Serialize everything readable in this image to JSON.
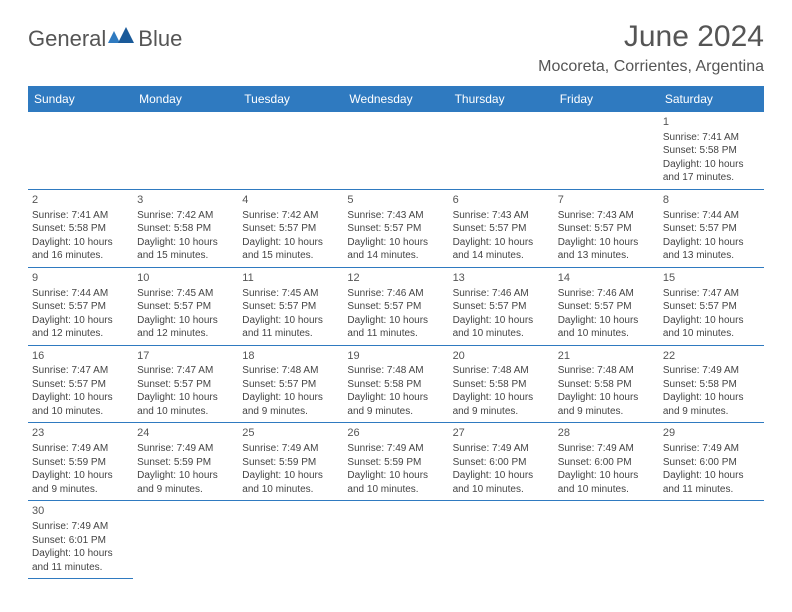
{
  "logo": {
    "text_gray": "General",
    "text_blue": "Blue"
  },
  "title": "June 2024",
  "location": "Mocoreta, Corrientes, Argentina",
  "colors": {
    "header_bg": "#2f7ac0",
    "header_fg": "#ffffff",
    "row_border": "#2f7ac0",
    "cell_top_border": "#cccccc",
    "text": "#444444",
    "title_text": "#555555"
  },
  "day_headers": [
    "Sunday",
    "Monday",
    "Tuesday",
    "Wednesday",
    "Thursday",
    "Friday",
    "Saturday"
  ],
  "weeks": [
    [
      null,
      null,
      null,
      null,
      null,
      null,
      {
        "n": "1",
        "sunrise": "7:41 AM",
        "sunset": "5:58 PM",
        "daylight": "10 hours and 17 minutes."
      }
    ],
    [
      {
        "n": "2",
        "sunrise": "7:41 AM",
        "sunset": "5:58 PM",
        "daylight": "10 hours and 16 minutes."
      },
      {
        "n": "3",
        "sunrise": "7:42 AM",
        "sunset": "5:58 PM",
        "daylight": "10 hours and 15 minutes."
      },
      {
        "n": "4",
        "sunrise": "7:42 AM",
        "sunset": "5:57 PM",
        "daylight": "10 hours and 15 minutes."
      },
      {
        "n": "5",
        "sunrise": "7:43 AM",
        "sunset": "5:57 PM",
        "daylight": "10 hours and 14 minutes."
      },
      {
        "n": "6",
        "sunrise": "7:43 AM",
        "sunset": "5:57 PM",
        "daylight": "10 hours and 14 minutes."
      },
      {
        "n": "7",
        "sunrise": "7:43 AM",
        "sunset": "5:57 PM",
        "daylight": "10 hours and 13 minutes."
      },
      {
        "n": "8",
        "sunrise": "7:44 AM",
        "sunset": "5:57 PM",
        "daylight": "10 hours and 13 minutes."
      }
    ],
    [
      {
        "n": "9",
        "sunrise": "7:44 AM",
        "sunset": "5:57 PM",
        "daylight": "10 hours and 12 minutes."
      },
      {
        "n": "10",
        "sunrise": "7:45 AM",
        "sunset": "5:57 PM",
        "daylight": "10 hours and 12 minutes."
      },
      {
        "n": "11",
        "sunrise": "7:45 AM",
        "sunset": "5:57 PM",
        "daylight": "10 hours and 11 minutes."
      },
      {
        "n": "12",
        "sunrise": "7:46 AM",
        "sunset": "5:57 PM",
        "daylight": "10 hours and 11 minutes."
      },
      {
        "n": "13",
        "sunrise": "7:46 AM",
        "sunset": "5:57 PM",
        "daylight": "10 hours and 10 minutes."
      },
      {
        "n": "14",
        "sunrise": "7:46 AM",
        "sunset": "5:57 PM",
        "daylight": "10 hours and 10 minutes."
      },
      {
        "n": "15",
        "sunrise": "7:47 AM",
        "sunset": "5:57 PM",
        "daylight": "10 hours and 10 minutes."
      }
    ],
    [
      {
        "n": "16",
        "sunrise": "7:47 AM",
        "sunset": "5:57 PM",
        "daylight": "10 hours and 10 minutes."
      },
      {
        "n": "17",
        "sunrise": "7:47 AM",
        "sunset": "5:57 PM",
        "daylight": "10 hours and 10 minutes."
      },
      {
        "n": "18",
        "sunrise": "7:48 AM",
        "sunset": "5:57 PM",
        "daylight": "10 hours and 9 minutes."
      },
      {
        "n": "19",
        "sunrise": "7:48 AM",
        "sunset": "5:58 PM",
        "daylight": "10 hours and 9 minutes."
      },
      {
        "n": "20",
        "sunrise": "7:48 AM",
        "sunset": "5:58 PM",
        "daylight": "10 hours and 9 minutes."
      },
      {
        "n": "21",
        "sunrise": "7:48 AM",
        "sunset": "5:58 PM",
        "daylight": "10 hours and 9 minutes."
      },
      {
        "n": "22",
        "sunrise": "7:49 AM",
        "sunset": "5:58 PM",
        "daylight": "10 hours and 9 minutes."
      }
    ],
    [
      {
        "n": "23",
        "sunrise": "7:49 AM",
        "sunset": "5:59 PM",
        "daylight": "10 hours and 9 minutes."
      },
      {
        "n": "24",
        "sunrise": "7:49 AM",
        "sunset": "5:59 PM",
        "daylight": "10 hours and 9 minutes."
      },
      {
        "n": "25",
        "sunrise": "7:49 AM",
        "sunset": "5:59 PM",
        "daylight": "10 hours and 10 minutes."
      },
      {
        "n": "26",
        "sunrise": "7:49 AM",
        "sunset": "5:59 PM",
        "daylight": "10 hours and 10 minutes."
      },
      {
        "n": "27",
        "sunrise": "7:49 AM",
        "sunset": "6:00 PM",
        "daylight": "10 hours and 10 minutes."
      },
      {
        "n": "28",
        "sunrise": "7:49 AM",
        "sunset": "6:00 PM",
        "daylight": "10 hours and 10 minutes."
      },
      {
        "n": "29",
        "sunrise": "7:49 AM",
        "sunset": "6:00 PM",
        "daylight": "10 hours and 11 minutes."
      }
    ],
    [
      {
        "n": "30",
        "sunrise": "7:49 AM",
        "sunset": "6:01 PM",
        "daylight": "10 hours and 11 minutes."
      },
      null,
      null,
      null,
      null,
      null,
      null
    ]
  ],
  "labels": {
    "sunrise": "Sunrise:",
    "sunset": "Sunset:",
    "daylight": "Daylight:"
  }
}
